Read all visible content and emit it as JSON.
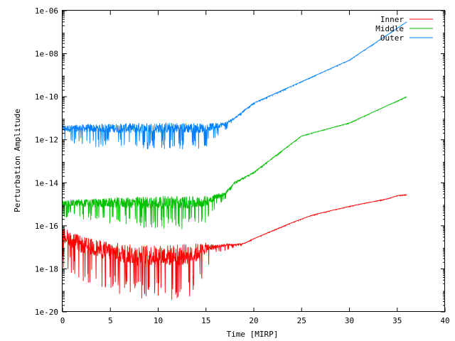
{
  "chart_data": {
    "type": "line",
    "title": "",
    "xlabel": "Time [MIRP]",
    "ylabel": "Perturbation Amplitude",
    "xlim": [
      0,
      40
    ],
    "ylim": [
      1e-20,
      1e-06
    ],
    "yscale": "log",
    "grid": false,
    "legend_position": "top-right",
    "x_ticks": [
      0,
      5,
      10,
      15,
      20,
      25,
      30,
      35,
      40
    ],
    "x_tick_labels": [
      "0",
      "5",
      "10",
      "15",
      "20",
      "25",
      "30",
      "35",
      "40"
    ],
    "y_ticks": [
      1e-20,
      1e-18,
      1e-16,
      1e-14,
      1e-12,
      1e-10,
      1e-08,
      1e-06
    ],
    "y_tick_labels": [
      "1e-20",
      "1e-18",
      "1e-16",
      "1e-14",
      "1e-12",
      "1e-10",
      "1e-08",
      "1e-06"
    ],
    "series": [
      {
        "name": "Inner",
        "color": "#ff0000",
        "x": [
          0,
          2,
          4,
          6,
          8,
          10,
          12,
          14,
          15,
          16,
          17,
          18,
          19,
          20,
          22,
          24,
          26,
          28,
          30,
          32,
          34,
          35,
          36
        ],
        "y": [
          3e-17,
          1e-17,
          6e-18,
          4e-18,
          3e-18,
          3e-18,
          3e-18,
          4e-18,
          8e-18,
          1e-17,
          1.2e-17,
          1.3e-17,
          1.5e-17,
          2.5e-17,
          6e-17,
          1.4e-16,
          3e-16,
          5e-16,
          8e-16,
          1.2e-15,
          1.8e-15,
          2.5e-15,
          2.8e-15
        ],
        "noise_band_dex": [
          1.2,
          1.3,
          1.4,
          1.5,
          1.6,
          1.6,
          1.7,
          1.5,
          0.8,
          0.3,
          0.2,
          0.1,
          0.05,
          0.03,
          0.02,
          0.02,
          0.02,
          0.02,
          0.02,
          0.02,
          0.02,
          0.02,
          0.02
        ]
      },
      {
        "name": "Middle",
        "color": "#00c000",
        "x": [
          0,
          2,
          4,
          6,
          8,
          10,
          12,
          14,
          15,
          16,
          17,
          18,
          20,
          25,
          30,
          36
        ],
        "y": [
          1e-15,
          1e-15,
          1e-15,
          1e-15,
          1e-15,
          1e-15,
          1e-15,
          1e-15,
          1.2e-15,
          2e-15,
          3e-15,
          1e-14,
          3e-14,
          1.5e-12,
          6e-12,
          1e-10
        ],
        "noise_band_dex": [
          0.5,
          0.6,
          0.7,
          0.8,
          0.9,
          1.0,
          1.0,
          0.9,
          0.8,
          0.5,
          0.2,
          0.1,
          0.05,
          0.02,
          0.02,
          0.02
        ]
      },
      {
        "name": "Outer",
        "color": "#0080ff",
        "x": [
          0,
          2,
          4,
          6,
          8,
          10,
          12,
          14,
          15,
          16,
          17,
          18,
          20,
          25,
          30,
          36
        ],
        "y": [
          3e-12,
          3e-12,
          3e-12,
          3e-12,
          3e-12,
          3e-12,
          3e-12,
          3e-12,
          3e-12,
          4e-12,
          5e-12,
          1e-11,
          5e-11,
          5e-10,
          5e-09,
          3e-07
        ],
        "noise_band_dex": [
          0.5,
          0.6,
          0.7,
          0.7,
          0.8,
          0.8,
          0.8,
          0.8,
          0.7,
          0.5,
          0.3,
          0.1,
          0.05,
          0.02,
          0.02,
          0.02
        ]
      }
    ]
  }
}
